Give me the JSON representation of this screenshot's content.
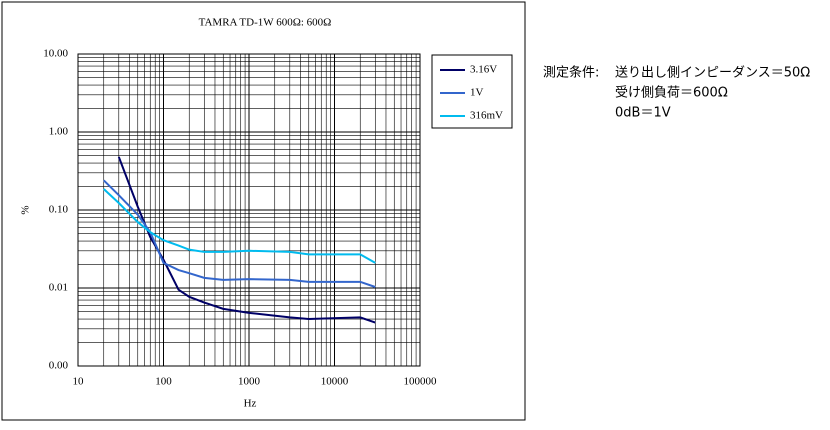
{
  "chart_data": {
    "type": "line",
    "title": "TAMRA TD-1W 600Ω: 600Ω",
    "x_label": "Hz",
    "y_label": "%",
    "x": [
      20,
      30,
      50,
      70,
      100,
      150,
      200,
      300,
      500,
      1000,
      3000,
      5000,
      20000,
      30000
    ],
    "series": [
      {
        "name": "3.16V",
        "color": "#000066",
        "values": [
          null,
          0.48,
          0.11,
          0.045,
          0.023,
          0.0095,
          0.0077,
          0.0065,
          0.0054,
          0.0048,
          0.0042,
          0.004,
          0.0042,
          0.0036
        ]
      },
      {
        "name": "1V",
        "color": "#3366cc",
        "values": [
          0.24,
          0.155,
          0.087,
          0.052,
          0.021,
          0.017,
          0.0155,
          0.0135,
          0.0127,
          0.013,
          0.0127,
          0.012,
          0.012,
          0.0103
        ]
      },
      {
        "name": "316mV",
        "color": "#00bbee",
        "values": [
          0.186,
          0.123,
          0.07,
          0.052,
          0.041,
          0.035,
          0.031,
          0.029,
          0.029,
          0.03,
          0.029,
          0.027,
          0.027,
          0.021
        ]
      }
    ],
    "xlim": [
      10,
      100000
    ],
    "xticks": [
      10,
      100,
      1000,
      10000,
      100000
    ],
    "ylim": [
      0.001,
      10
    ],
    "yticks": [
      {
        "value": 0.001,
        "label": "0.00"
      },
      {
        "value": 0.01,
        "label": "0.01"
      },
      {
        "value": 0.1,
        "label": "0.10"
      },
      {
        "value": 1,
        "label": "1.00"
      },
      {
        "value": 10,
        "label": "10.00"
      }
    ],
    "x_log": true,
    "y_log": true,
    "grid": true,
    "minor_grid": true,
    "legend": "upper right",
    "annotations": [
      "測定条件:",
      "送り出し側インピーダンス＝50Ω",
      "受け側負荷＝600Ω",
      "0dB＝1V"
    ]
  }
}
